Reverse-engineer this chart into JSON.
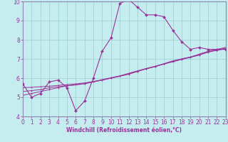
{
  "xlabel": "Windchill (Refroidissement éolien,°C)",
  "bg_color": "#c5edf0",
  "line_color": "#993399",
  "grid_color": "#99cccc",
  "spine_color": "#8888aa",
  "x_min": 0,
  "x_max": 23,
  "y_min": 4,
  "y_max": 10,
  "x_ticks": [
    0,
    1,
    2,
    3,
    4,
    5,
    6,
    7,
    8,
    9,
    10,
    11,
    12,
    13,
    14,
    15,
    16,
    17,
    18,
    19,
    20,
    21,
    22,
    23
  ],
  "y_ticks": [
    4,
    5,
    6,
    7,
    8,
    9,
    10
  ],
  "curve1_x": [
    0,
    1,
    2,
    3,
    4,
    5,
    6,
    7,
    8,
    9,
    10,
    11,
    12,
    13,
    14,
    15,
    16,
    17,
    18,
    19,
    20,
    21,
    22,
    23
  ],
  "curve1_y": [
    5.7,
    5.0,
    5.2,
    5.8,
    5.9,
    5.5,
    4.3,
    4.8,
    6.0,
    7.4,
    8.1,
    9.9,
    10.1,
    9.7,
    9.3,
    9.3,
    9.2,
    8.5,
    7.9,
    7.5,
    7.6,
    7.5,
    7.5,
    7.5
  ],
  "line2_x": [
    0,
    1,
    2,
    3,
    4,
    5,
    6,
    7,
    8,
    9,
    10,
    11,
    12,
    13,
    14,
    15,
    16,
    17,
    18,
    19,
    20,
    21,
    22,
    23
  ],
  "line2_y": [
    5.1,
    5.2,
    5.3,
    5.4,
    5.5,
    5.6,
    5.65,
    5.7,
    5.8,
    5.9,
    6.0,
    6.1,
    6.2,
    6.35,
    6.5,
    6.6,
    6.75,
    6.9,
    7.0,
    7.1,
    7.25,
    7.4,
    7.5,
    7.6
  ],
  "line3_x": [
    0,
    1,
    2,
    3,
    4,
    5,
    6,
    7,
    8,
    9,
    10,
    11,
    12,
    13,
    14,
    15,
    16,
    17,
    18,
    19,
    20,
    21,
    22,
    23
  ],
  "line3_y": [
    5.3,
    5.35,
    5.4,
    5.5,
    5.55,
    5.6,
    5.65,
    5.72,
    5.82,
    5.92,
    6.02,
    6.12,
    6.25,
    6.38,
    6.5,
    6.62,
    6.75,
    6.88,
    7.0,
    7.1,
    7.22,
    7.38,
    7.48,
    7.55
  ],
  "line4_x": [
    0,
    1,
    2,
    3,
    4,
    5,
    6,
    7,
    8,
    9,
    10,
    11,
    12,
    13,
    14,
    15,
    16,
    17,
    18,
    19,
    20,
    21,
    22,
    23
  ],
  "line4_y": [
    5.5,
    5.52,
    5.55,
    5.58,
    5.62,
    5.66,
    5.7,
    5.75,
    5.82,
    5.9,
    6.0,
    6.1,
    6.22,
    6.35,
    6.48,
    6.6,
    6.73,
    6.85,
    6.97,
    7.08,
    7.2,
    7.35,
    7.45,
    7.52
  ]
}
